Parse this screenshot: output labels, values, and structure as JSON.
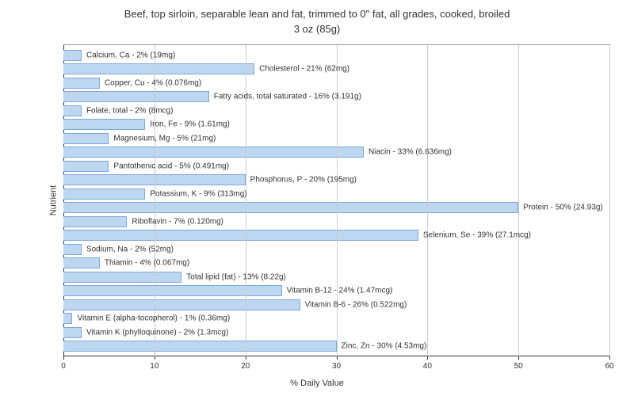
{
  "chart": {
    "type": "bar-horizontal",
    "title_line1": "Beef, top sirloin, separable lean and fat, trimmed to 0\" fat, all grades, cooked, broiled",
    "title_line2": "3 oz (85g)",
    "x_label": "% Daily Value",
    "y_label": "Nutrient",
    "x_min": 0,
    "x_max": 60,
    "x_tick_step": 10,
    "x_ticks": [
      0,
      10,
      20,
      30,
      40,
      50,
      60
    ],
    "bar_color": "#bdd7f0",
    "bar_border": "#7fa8d9",
    "grid_color": "#cccccc",
    "axis_color": "#333333",
    "background_color": "#ffffff",
    "label_fontsize": 10,
    "title_fontsize": 13,
    "nutrients": [
      {
        "label": "Calcium, Ca - 2% (19mg)",
        "value": 2
      },
      {
        "label": "Cholesterol - 21% (62mg)",
        "value": 21
      },
      {
        "label": "Copper, Cu - 4% (0.076mg)",
        "value": 4
      },
      {
        "label": "Fatty acids, total saturated - 16% (3.191g)",
        "value": 16
      },
      {
        "label": "Folate, total - 2% (8mcg)",
        "value": 2
      },
      {
        "label": "Iron, Fe - 9% (1.61mg)",
        "value": 9
      },
      {
        "label": "Magnesium, Mg - 5% (21mg)",
        "value": 5
      },
      {
        "label": "Niacin - 33% (6.636mg)",
        "value": 33
      },
      {
        "label": "Pantothenic acid - 5% (0.491mg)",
        "value": 5
      },
      {
        "label": "Phosphorus, P - 20% (195mg)",
        "value": 20
      },
      {
        "label": "Potassium, K - 9% (313mg)",
        "value": 9
      },
      {
        "label": "Protein - 50% (24.93g)",
        "value": 50
      },
      {
        "label": "Riboflavin - 7% (0.120mg)",
        "value": 7
      },
      {
        "label": "Selenium, Se - 39% (27.1mcg)",
        "value": 39
      },
      {
        "label": "Sodium, Na - 2% (52mg)",
        "value": 2
      },
      {
        "label": "Thiamin - 4% (0.067mg)",
        "value": 4
      },
      {
        "label": "Total lipid (fat) - 13% (8.22g)",
        "value": 13
      },
      {
        "label": "Vitamin B-12 - 24% (1.47mcg)",
        "value": 24
      },
      {
        "label": "Vitamin B-6 - 26% (0.522mg)",
        "value": 26
      },
      {
        "label": "Vitamin E (alpha-tocopherol) - 1% (0.36mg)",
        "value": 1
      },
      {
        "label": "Vitamin K (phylloquinone) - 2% (1.3mcg)",
        "value": 2
      },
      {
        "label": "Zinc, Zn - 30% (4.53mg)",
        "value": 30
      }
    ]
  }
}
